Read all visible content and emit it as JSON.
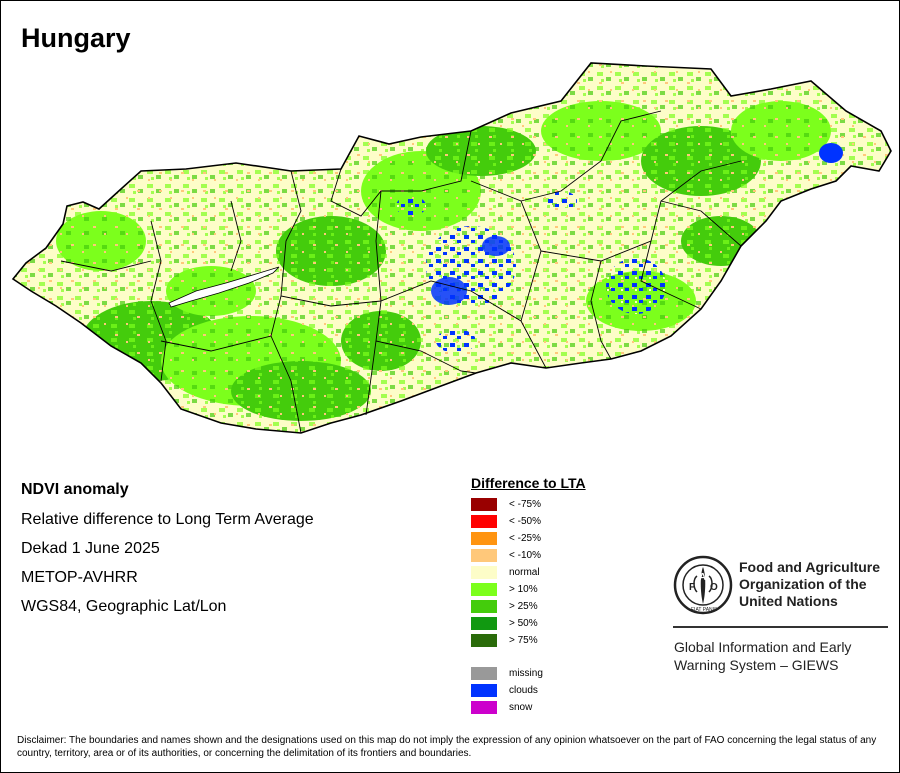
{
  "map": {
    "title": "Hungary",
    "colors": {
      "normal": "#fdfdc8",
      "gt10": "#7cff1c",
      "gt25": "#44cc0c",
      "clouds": "#0033ff",
      "lt10": "#ffc87a",
      "border": "#000000",
      "water": "#ffffff"
    }
  },
  "info": {
    "line1": "NDVI anomaly",
    "line2": "Relative difference to Long Term Average",
    "line3": "Dekad 1 June 2025",
    "line4": "METOP-AVHRR",
    "line5": "WGS84, Geographic Lat/Lon"
  },
  "legend": {
    "title": "Difference to LTA",
    "items": [
      {
        "label": "< -75%",
        "color": "#990000"
      },
      {
        "label": "< -50%",
        "color": "#ff0000"
      },
      {
        "label": "< -25%",
        "color": "#ff9410"
      },
      {
        "label": "< -10%",
        "color": "#ffc87a"
      },
      {
        "label": "normal",
        "color": "#fdfdc8"
      },
      {
        "label": "> 10%",
        "color": "#7cff1c"
      },
      {
        "label": "> 25%",
        "color": "#44cc0c"
      },
      {
        "label": "> 50%",
        "color": "#119911"
      },
      {
        "label": "> 75%",
        "color": "#2a6b0a"
      }
    ],
    "extra": [
      {
        "label": "missing",
        "color": "#999999"
      },
      {
        "label": "clouds",
        "color": "#0033ff"
      },
      {
        "label": "snow",
        "color": "#cc00cc"
      }
    ]
  },
  "fao": {
    "logo_letters": "FAO",
    "motto": "FIAT PANIS",
    "name_line1": "Food and Agriculture",
    "name_line2": "Organization of the",
    "name_line3": "United Nations",
    "giews_line1": "Global Information and Early",
    "giews_line2": "Warning System – GIEWS"
  },
  "disclaimer": "Disclaimer: The boundaries and names shown and the designations used on this map do not imply the expression of any opinion whatsoever on the part of FAO concerning the legal status of any country, territory, area or of its authorities, or concerning the delimitation of its frontiers and boundaries."
}
